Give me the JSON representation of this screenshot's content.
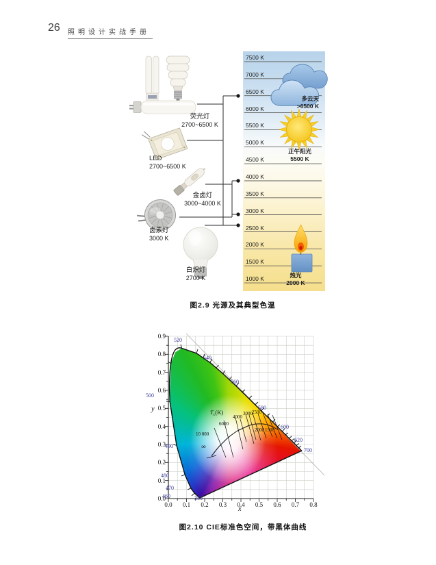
{
  "header": {
    "page_number": "26",
    "book_title": "照明设计实战手册"
  },
  "figure29": {
    "caption": "图2.9  光源及其典型色温",
    "scale_labels": [
      "7500 K",
      "7000 K",
      "6500 K",
      "6000 K",
      "5500 K",
      "5000 K",
      "4500 K",
      "4000 K",
      "3500 K",
      "3000 K",
      "2500 K",
      "2000 K",
      "1500 K",
      "1000 K"
    ],
    "lamps": [
      {
        "name": "荧光灯",
        "range": "2700~6500 K"
      },
      {
        "name": "LED",
        "range": "2700~6500 K"
      },
      {
        "name": "金卤灯",
        "range": "3000~4000 K"
      },
      {
        "name": "卤素灯",
        "range": "3000 K"
      },
      {
        "name": "白炽灯",
        "range": "2700 K"
      }
    ],
    "references": [
      {
        "name": "多云天",
        "value": ">6500 K"
      },
      {
        "name": "正午阳光",
        "value": "5500 K"
      },
      {
        "name": "烛光",
        "value": "2000 K"
      }
    ],
    "colors": {
      "band_top": "#b7d3ea",
      "band_bottom": "#f5df8e",
      "cloud_blue": "#8fb5de",
      "sun_yellow": "#f6cf26",
      "flame_orange": "#f6a000",
      "candle_blue": "#6f9fd8"
    }
  },
  "figure210": {
    "caption": "图2.10  CIE标准色空间，带黑体曲线",
    "x_axis_label": "x",
    "y_axis_label": "y",
    "x_ticks": [
      "0.0",
      "0.1",
      "0.2",
      "0.3",
      "0.4",
      "0.5",
      "0.6",
      "0.7",
      "0.8"
    ],
    "y_ticks": [
      "0.0",
      "0.1",
      "0.2",
      "0.3",
      "0.4",
      "0.5",
      "0.6",
      "0.7",
      "0.8",
      "0.9"
    ],
    "wavelength_labels": [
      "520",
      "540",
      "560",
      "580",
      "600",
      "620",
      "700",
      "500",
      "490",
      "480",
      "470",
      "460",
      "380"
    ],
    "blackbody": {
      "label_T": "T",
      "label_sub": "c",
      "label_rest": "(K)",
      "infinity": "∞",
      "temps": [
        "10 000",
        "6000",
        "4000",
        "3000",
        "2500",
        "2000",
        "1500"
      ]
    }
  },
  "chart_data": {
    "type": "scatter",
    "title": "图2.10  CIE标准色空间，带黑体曲线",
    "xlabel": "x",
    "ylabel": "y",
    "xlim": [
      0,
      0.8
    ],
    "ylim": [
      0,
      0.9
    ],
    "grid": true,
    "series": [
      {
        "name": "黑体曲线 Tc(K)",
        "points": [
          [
            0.24,
            0.234
          ],
          [
            0.281,
            0.288
          ],
          [
            0.322,
            0.332
          ],
          [
            0.381,
            0.377
          ],
          [
            0.437,
            0.404
          ],
          [
            0.477,
            0.414
          ],
          [
            0.527,
            0.413
          ],
          [
            0.586,
            0.393
          ]
        ],
        "point_labels": [
          "∞",
          "10 000",
          "6000",
          "4000",
          "3000",
          "2500",
          "2000",
          "1500"
        ]
      }
    ],
    "annotations": [
      "380",
      "460",
      "470",
      "480",
      "490",
      "500",
      "520",
      "540",
      "560",
      "580",
      "600",
      "620",
      "700"
    ]
  }
}
